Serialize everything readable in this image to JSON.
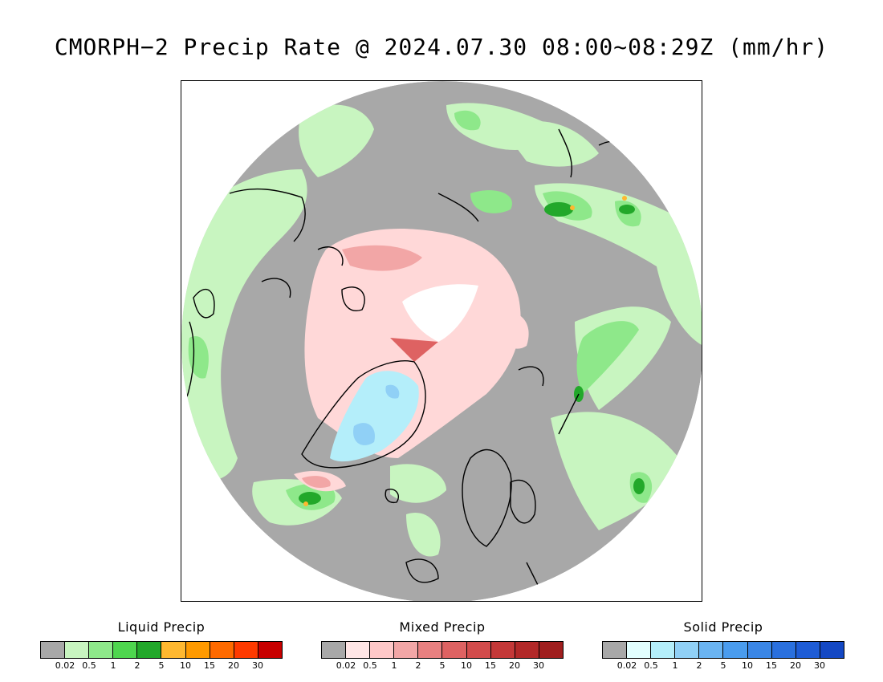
{
  "title": "CMORPH−2 Precip Rate @ 2024.07.30 08:00~08:29Z (mm/hr)",
  "map": {
    "projection": "north-polar-stereographic",
    "background_color": "#a8a8a8",
    "coastline_color": "#000000"
  },
  "legends": [
    {
      "title": "Liquid Precip",
      "colors": [
        "#a8a8a8",
        "#c8f5c0",
        "#8ee88a",
        "#4ed64e",
        "#22a82a",
        "#ffb830",
        "#ff9a00",
        "#ff6a00",
        "#ff3a00",
        "#c80000"
      ],
      "ticks": [
        "0.02",
        "0.5",
        "1",
        "2",
        "5",
        "10",
        "15",
        "20",
        "30"
      ]
    },
    {
      "title": "Mixed Precip",
      "colors": [
        "#a8a8a8",
        "#ffe6e6",
        "#ffc8c8",
        "#f2a6a6",
        "#e88080",
        "#de6262",
        "#d24c4c",
        "#c43838",
        "#b22828",
        "#a01e1e"
      ],
      "ticks": [
        "0.02",
        "0.5",
        "1",
        "2",
        "5",
        "10",
        "15",
        "20",
        "30"
      ]
    },
    {
      "title": "Solid Precip",
      "colors": [
        "#a8a8a8",
        "#e2ffff",
        "#b4eefa",
        "#90d0f6",
        "#6ab4f2",
        "#4a9cee",
        "#3a86e6",
        "#2a70de",
        "#1e5cd6",
        "#1448c4"
      ],
      "ticks": [
        "0.02",
        "0.5",
        "1",
        "2",
        "5",
        "10",
        "15",
        "20",
        "30"
      ]
    }
  ]
}
